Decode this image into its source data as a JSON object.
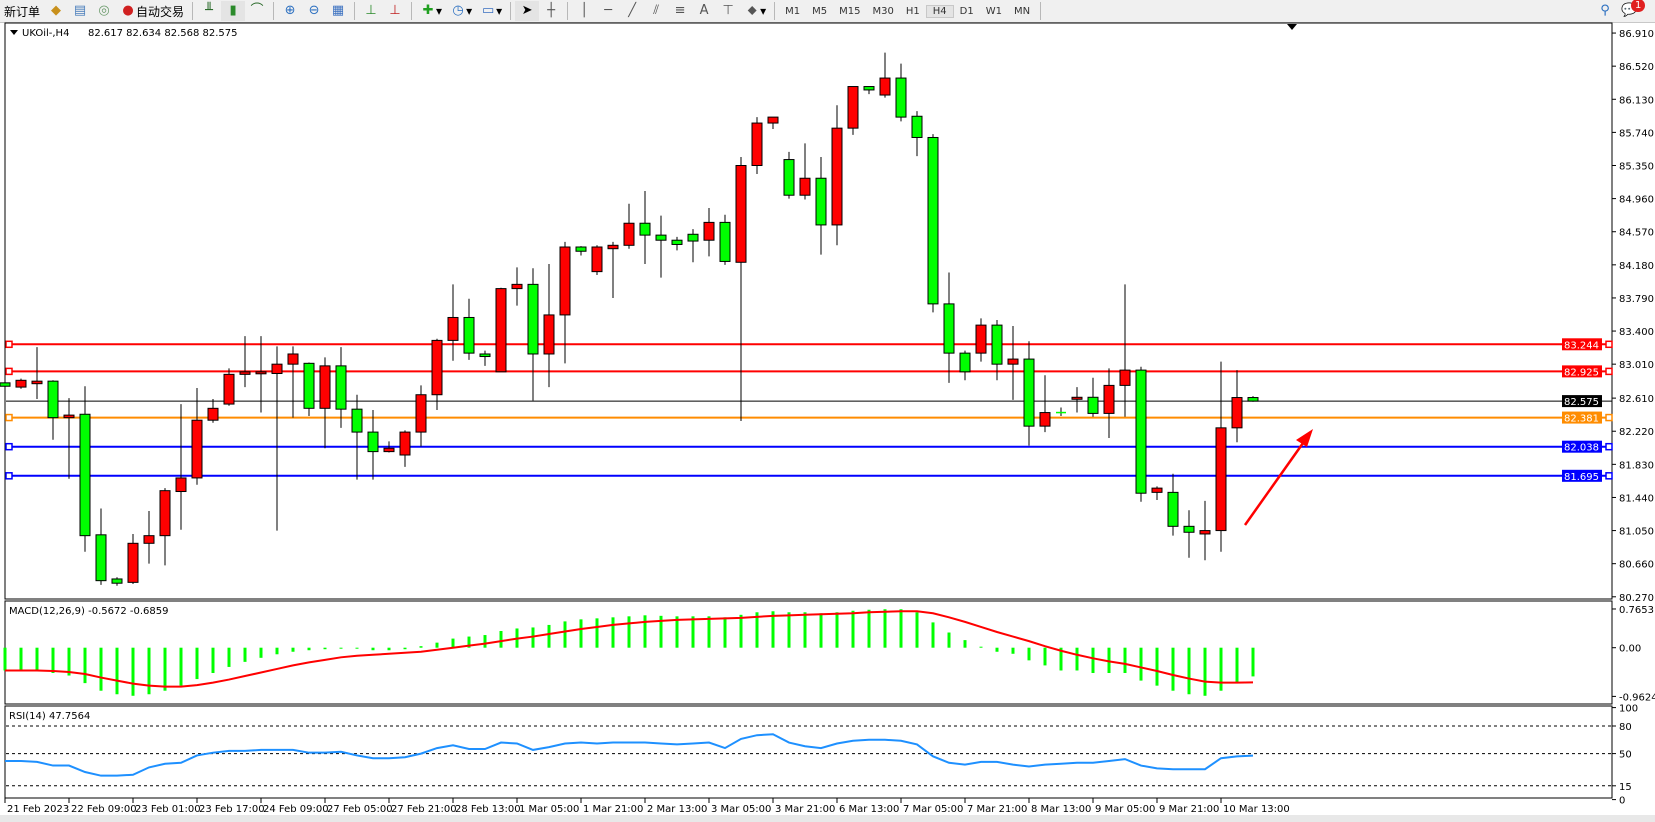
{
  "toolbar": {
    "new_order_label": "新订单",
    "auto_trading_label": "自动交易",
    "icons": [
      "market-watch-icon",
      "navigator-icon",
      "signals-icon",
      "auto-trading-icon",
      "bar-chart-icon",
      "candlestick-icon",
      "line-chart-icon",
      "zoom-in-icon",
      "zoom-out-icon",
      "tile-windows-icon",
      "chart-shift-icon",
      "autoscroll-icon",
      "indicators-icon",
      "periods-icon",
      "templates-icon",
      "cursor-icon",
      "crosshair-icon",
      "vertical-line-icon",
      "horizontal-line-icon",
      "trendline-icon",
      "equidistant-channel-icon",
      "fibonacci-icon",
      "text-icon",
      "text-label-icon",
      "arrows-icon"
    ],
    "text_tool": "A",
    "timeframes": [
      "M1",
      "M5",
      "M15",
      "M30",
      "H1",
      "H4",
      "D1",
      "W1",
      "MN"
    ],
    "active_timeframe": "H4",
    "notification_count": "1"
  },
  "chart_header": {
    "symbol": "UKOil-,H4",
    "ohlc": "82.617 82.634 82.568 82.575"
  },
  "chart_data": {
    "type": "candlestick",
    "bull_color": "#ff0000",
    "bear_color": "#00ff00",
    "ylim": [
      80.27,
      86.91
    ],
    "price_ticks": [
      "86.910",
      "86.520",
      "86.130",
      "85.740",
      "85.350",
      "84.960",
      "84.570",
      "84.180",
      "83.790",
      "83.400",
      "83.010",
      "82.610",
      "82.220",
      "81.830",
      "81.440",
      "81.050",
      "80.660",
      "80.270"
    ],
    "time_labels": [
      "21 Feb 2023",
      "22 Feb 09:00",
      "23 Feb 01:00",
      "23 Feb 17:00",
      "24 Feb 09:00",
      "27 Feb 05:00",
      "27 Feb 21:00",
      "28 Feb 13:00",
      "1 Mar 05:00",
      "1 Mar 21:00",
      "2 Mar 13:00",
      "3 Mar 05:00",
      "3 Mar 21:00",
      "6 Mar 13:00",
      "7 Mar 05:00",
      "7 Mar 21:00",
      "8 Mar 13:00",
      "9 Mar 05:00",
      "9 Mar 21:00",
      "10 Mar 13:00"
    ],
    "ohlc": [
      [
        82.79,
        83.55,
        82.5,
        82.75
      ],
      [
        82.74,
        82.84,
        82.72,
        82.82
      ],
      [
        82.78,
        83.21,
        82.6,
        82.81
      ],
      [
        82.81,
        82.82,
        82.12,
        82.38
      ],
      [
        82.38,
        82.61,
        81.66,
        82.41
      ],
      [
        82.42,
        82.75,
        80.8,
        80.99
      ],
      [
        81.0,
        81.31,
        80.41,
        80.46
      ],
      [
        80.48,
        80.5,
        80.4,
        80.43
      ],
      [
        80.44,
        81.01,
        80.42,
        80.9
      ],
      [
        80.9,
        81.28,
        80.66,
        80.99
      ],
      [
        80.99,
        81.55,
        80.64,
        81.52
      ],
      [
        81.51,
        82.54,
        81.06,
        81.67
      ],
      [
        81.67,
        82.73,
        81.59,
        82.35
      ],
      [
        82.35,
        82.6,
        82.32,
        82.49
      ],
      [
        82.54,
        82.96,
        82.52,
        82.89
      ],
      [
        82.89,
        83.34,
        82.74,
        82.92
      ],
      [
        82.9,
        83.34,
        82.44,
        82.92
      ],
      [
        82.9,
        83.22,
        81.05,
        83.01
      ],
      [
        83.01,
        83.22,
        82.38,
        83.13
      ],
      [
        83.02,
        83.03,
        82.4,
        82.49
      ],
      [
        82.49,
        83.09,
        82.02,
        82.99
      ],
      [
        82.99,
        83.21,
        82.26,
        82.48
      ],
      [
        82.48,
        82.65,
        81.65,
        82.21
      ],
      [
        82.21,
        82.47,
        81.65,
        81.98
      ],
      [
        81.98,
        82.1,
        81.97,
        82.02
      ],
      [
        81.94,
        82.23,
        81.8,
        82.21
      ],
      [
        82.21,
        82.76,
        82.04,
        82.65
      ],
      [
        82.65,
        83.31,
        82.47,
        83.29
      ],
      [
        83.29,
        83.95,
        83.05,
        83.56
      ],
      [
        83.56,
        83.78,
        83.06,
        83.14
      ],
      [
        83.13,
        83.17,
        82.99,
        83.1
      ],
      [
        82.92,
        83.91,
        82.92,
        83.9
      ],
      [
        83.9,
        84.15,
        83.7,
        83.95
      ],
      [
        83.95,
        84.14,
        82.58,
        83.13
      ],
      [
        83.13,
        84.19,
        82.74,
        83.59
      ],
      [
        83.59,
        84.45,
        83.02,
        84.39
      ],
      [
        84.39,
        84.4,
        84.29,
        84.34
      ],
      [
        84.1,
        84.41,
        84.06,
        84.39
      ],
      [
        84.37,
        84.45,
        83.79,
        84.41
      ],
      [
        84.41,
        84.9,
        84.37,
        84.67
      ],
      [
        84.67,
        85.05,
        84.19,
        84.53
      ],
      [
        84.53,
        84.76,
        84.03,
        84.47
      ],
      [
        84.47,
        84.51,
        84.35,
        84.42
      ],
      [
        84.54,
        84.6,
        84.21,
        84.46
      ],
      [
        84.47,
        84.85,
        84.28,
        84.68
      ],
      [
        84.68,
        84.77,
        84.18,
        84.22
      ],
      [
        84.21,
        85.45,
        82.34,
        85.35
      ],
      [
        85.35,
        85.92,
        85.25,
        85.85
      ],
      [
        85.85,
        85.92,
        85.78,
        85.92
      ],
      [
        85.42,
        85.51,
        84.96,
        85.0
      ],
      [
        85.0,
        85.61,
        84.95,
        85.2
      ],
      [
        85.2,
        85.45,
        84.3,
        84.65
      ],
      [
        84.65,
        86.06,
        84.41,
        85.79
      ],
      [
        85.79,
        86.28,
        85.71,
        86.28
      ],
      [
        86.28,
        86.28,
        86.19,
        86.24
      ],
      [
        86.18,
        86.68,
        86.15,
        86.38
      ],
      [
        86.38,
        86.55,
        85.87,
        85.92
      ],
      [
        85.93,
        85.99,
        85.46,
        85.68
      ],
      [
        85.68,
        85.72,
        83.62,
        83.72
      ],
      [
        83.72,
        84.09,
        82.79,
        83.14
      ],
      [
        83.14,
        83.17,
        82.82,
        82.92
      ],
      [
        83.14,
        83.55,
        83.04,
        83.47
      ],
      [
        83.47,
        83.53,
        82.82,
        83.01
      ],
      [
        83.01,
        83.46,
        82.59,
        83.07
      ],
      [
        83.07,
        83.28,
        82.05,
        82.28
      ],
      [
        82.28,
        82.88,
        82.21,
        82.44
      ],
      [
        82.44,
        82.5,
        82.4,
        82.44
      ],
      [
        82.6,
        82.74,
        82.44,
        82.62
      ],
      [
        82.62,
        82.85,
        82.39,
        82.43
      ],
      [
        82.43,
        82.96,
        82.14,
        82.76
      ],
      [
        82.76,
        83.95,
        82.39,
        82.94
      ],
      [
        82.94,
        82.98,
        81.39,
        81.49
      ],
      [
        81.5,
        81.57,
        81.41,
        81.55
      ],
      [
        81.5,
        81.72,
        80.99,
        81.1
      ],
      [
        81.1,
        81.29,
        80.73,
        81.03
      ],
      [
        81.01,
        81.4,
        80.7,
        81.05
      ],
      [
        81.05,
        83.04,
        80.8,
        82.26
      ],
      [
        82.26,
        82.94,
        82.09,
        82.617
      ],
      [
        82.617,
        82.634,
        82.568,
        82.575
      ]
    ],
    "horizontal_lines": [
      {
        "price": "83.244",
        "color": "#ff0000"
      },
      {
        "price": "82.925",
        "color": "#ff0000"
      },
      {
        "price": "82.575",
        "color": "#000000"
      },
      {
        "price": "82.381",
        "color": "#ff8c00"
      },
      {
        "price": "82.038",
        "color": "#0000ff"
      },
      {
        "price": "81.695",
        "color": "#0000ff"
      }
    ],
    "annotation_arrow": {
      "color": "#ff0000",
      "direction": "up-right"
    },
    "macd": {
      "label": "MACD(12,26,9) -0.5672 -0.6859",
      "ticks": [
        "0.7653",
        "0.00",
        "-0.9624"
      ],
      "ylim": [
        -0.9624,
        0.7653
      ],
      "histogram_color": "#00ff00",
      "signal_color": "#ff0000",
      "main": [
        -0.45,
        -0.45,
        -0.45,
        -0.5,
        -0.55,
        -0.7,
        -0.85,
        -0.92,
        -0.95,
        -0.92,
        -0.85,
        -0.75,
        -0.62,
        -0.5,
        -0.38,
        -0.28,
        -0.2,
        -0.13,
        -0.08,
        -0.05,
        -0.03,
        0.0,
        -0.02,
        -0.05,
        -0.05,
        -0.03,
        0.03,
        0.1,
        0.18,
        0.22,
        0.25,
        0.33,
        0.38,
        0.4,
        0.45,
        0.52,
        0.56,
        0.58,
        0.6,
        0.62,
        0.64,
        0.63,
        0.62,
        0.62,
        0.62,
        0.6,
        0.65,
        0.7,
        0.72,
        0.7,
        0.7,
        0.68,
        0.7,
        0.73,
        0.75,
        0.76,
        0.76,
        0.7,
        0.5,
        0.3,
        0.15,
        0.02,
        -0.08,
        -0.12,
        -0.25,
        -0.35,
        -0.45,
        -0.45,
        -0.5,
        -0.5,
        -0.5,
        -0.65,
        -0.75,
        -0.85,
        -0.92,
        -0.95,
        -0.85,
        -0.7,
        -0.5672
      ],
      "signal": [
        -0.45,
        -0.45,
        -0.45,
        -0.46,
        -0.48,
        -0.52,
        -0.59,
        -0.65,
        -0.71,
        -0.75,
        -0.77,
        -0.77,
        -0.74,
        -0.69,
        -0.63,
        -0.56,
        -0.49,
        -0.42,
        -0.35,
        -0.29,
        -0.24,
        -0.19,
        -0.16,
        -0.14,
        -0.12,
        -0.1,
        -0.08,
        -0.04,
        0.0,
        0.04,
        0.08,
        0.13,
        0.18,
        0.22,
        0.27,
        0.32,
        0.37,
        0.41,
        0.45,
        0.48,
        0.51,
        0.53,
        0.55,
        0.56,
        0.57,
        0.58,
        0.59,
        0.61,
        0.63,
        0.64,
        0.65,
        0.66,
        0.67,
        0.68,
        0.7,
        0.71,
        0.72,
        0.72,
        0.68,
        0.6,
        0.51,
        0.41,
        0.31,
        0.22,
        0.13,
        0.03,
        -0.06,
        -0.14,
        -0.21,
        -0.27,
        -0.32,
        -0.39,
        -0.46,
        -0.54,
        -0.61,
        -0.67,
        -0.69,
        -0.69,
        -0.6859
      ]
    },
    "rsi": {
      "label": "RSI(14) 47.7564",
      "ticks": [
        "100",
        "80",
        "50",
        "15",
        "0"
      ],
      "levels": [
        80,
        50,
        15
      ],
      "ylim": [
        0,
        100
      ],
      "color": "#1e90ff",
      "values": [
        42,
        42,
        41,
        37,
        37,
        30,
        26,
        26,
        27,
        35,
        39,
        40,
        48,
        51,
        53,
        53,
        54,
        54,
        54,
        51,
        51,
        52,
        48,
        45,
        45,
        46,
        50,
        56,
        59,
        55,
        55,
        62,
        61,
        54,
        57,
        61,
        62,
        61,
        62,
        62,
        62,
        61,
        60,
        61,
        62,
        56,
        66,
        70,
        71,
        62,
        58,
        56,
        61,
        64,
        65,
        65,
        64,
        60,
        47,
        40,
        38,
        41,
        41,
        38,
        36,
        38,
        39,
        40,
        40,
        42,
        44,
        37,
        34,
        33,
        33,
        33,
        45,
        47,
        47.7564
      ]
    }
  }
}
